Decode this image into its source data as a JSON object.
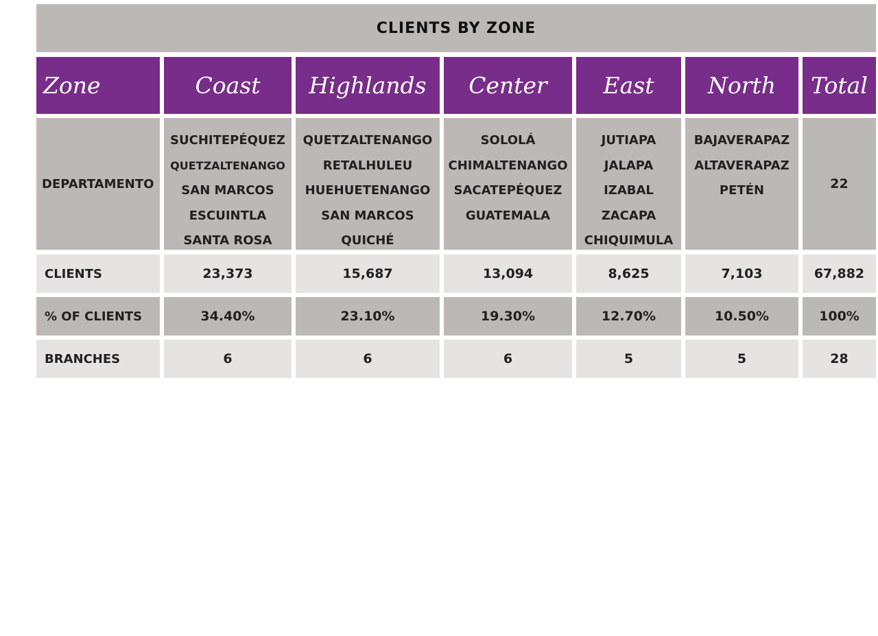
{
  "table": {
    "title": "CLIENTS BY ZONE",
    "header": [
      "Zone",
      "Coast",
      "Highlands",
      "Center",
      "East",
      "North",
      "Total"
    ],
    "departamento": {
      "label": "DEPARTAMENTO",
      "coast": [
        "SUCHITEPÉQUEZ",
        "QUETZALTENANGO",
        "SAN MARCOS",
        "ESCUINTLA",
        "SANTA ROSA"
      ],
      "highlands": [
        "QUETZALTENANGO",
        "RETALHULEU",
        "HUEHUETENANGO",
        "SAN MARCOS",
        "QUICHÉ"
      ],
      "center": [
        "SOLOLÁ",
        "CHIMALTENANGO",
        "SACATEPÉQUEZ",
        "GUATEMALA"
      ],
      "east": [
        "JUTIAPA",
        "JALAPA",
        "IZABAL",
        "ZACAPA",
        "CHIQUIMULA"
      ],
      "north": [
        "BAJAVERAPAZ",
        "ALTAVERAPAZ",
        "PETÉN"
      ],
      "total": "22"
    },
    "rows": [
      {
        "label": "CLIENTS",
        "values": [
          "23,373",
          "15,687",
          "13,094",
          "8,625",
          "7,103",
          "67,882"
        ]
      },
      {
        "label": "% OF CLIENTS",
        "values": [
          "34.40%",
          "23.10%",
          "19.30%",
          "12.70%",
          "10.50%",
          "100%"
        ]
      },
      {
        "label": "BRANCHES",
        "values": [
          "6",
          "6",
          "6",
          "5",
          "5",
          "28"
        ]
      }
    ]
  }
}
